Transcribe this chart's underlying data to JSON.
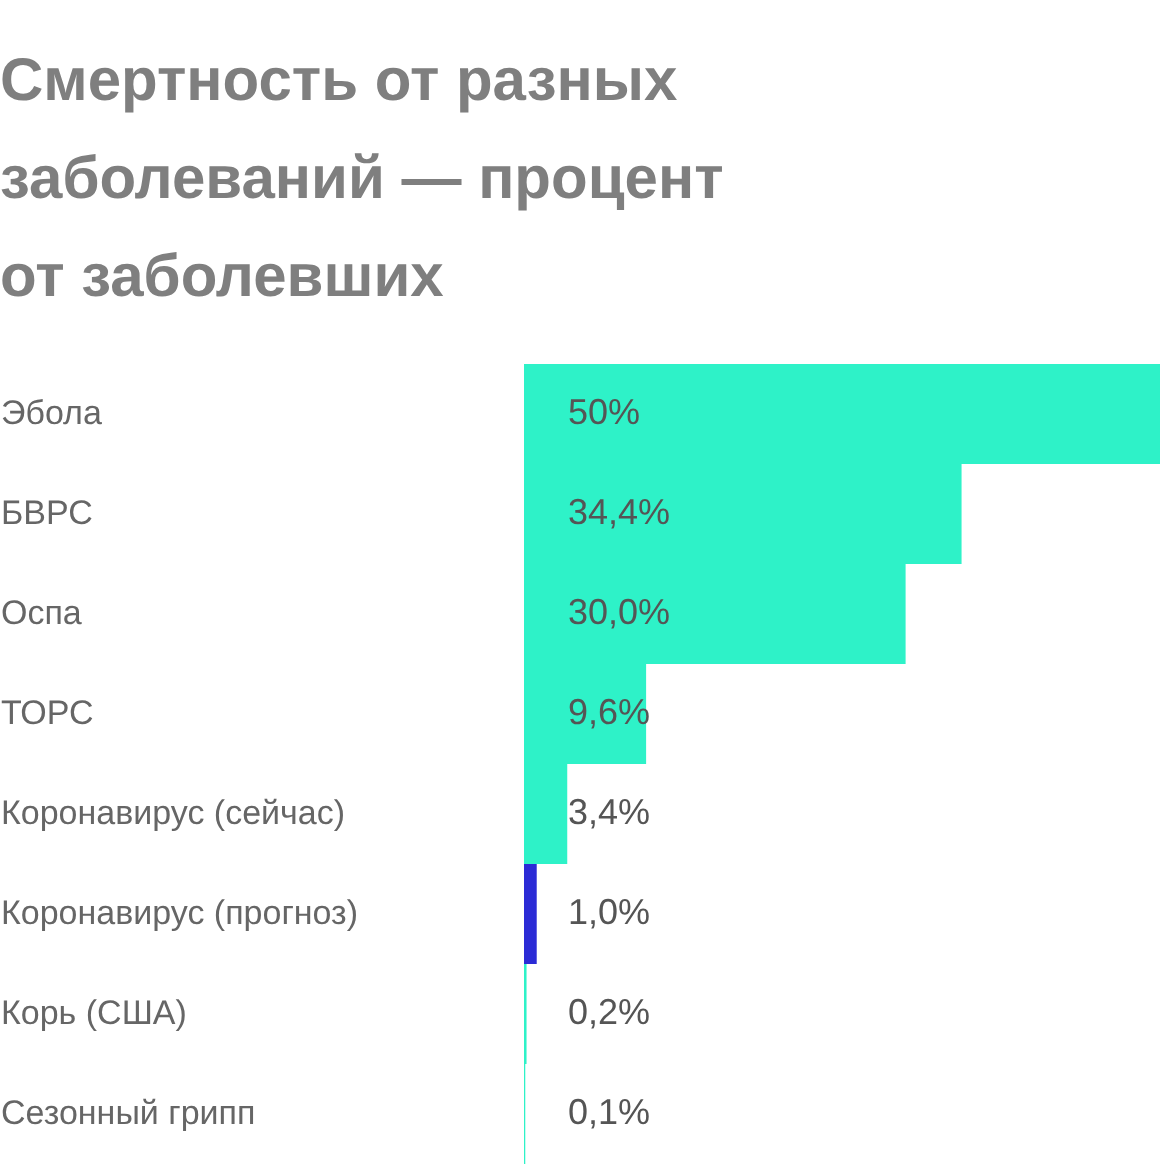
{
  "chart_data": {
    "type": "bar",
    "orientation": "horizontal",
    "title": "Смертность от разных заболеваний — процент от заболевших",
    "categories": [
      "Эбола",
      "БВРС",
      "Оспа",
      "ТОРС",
      "Коронавирус (сейчас)",
      "Коронавирус (прогноз)",
      "Корь (США)",
      "Сезонный грипп"
    ],
    "values": [
      50,
      34.4,
      30.0,
      9.6,
      3.4,
      1.0,
      0.2,
      0.1
    ],
    "colors": [
      "#2ef2c8",
      "#2ef2c8",
      "#2ef2c8",
      "#2ef2c8",
      "#2ef2c8",
      "#2b2bd6",
      "#2ef2c8",
      "#2ef2c8"
    ],
    "value_labels": [
      "50%",
      "34,4%",
      "30,0%",
      "9,6%",
      "3,4%",
      "1,0%",
      "0,2%",
      "0,1%"
    ]
  }
}
